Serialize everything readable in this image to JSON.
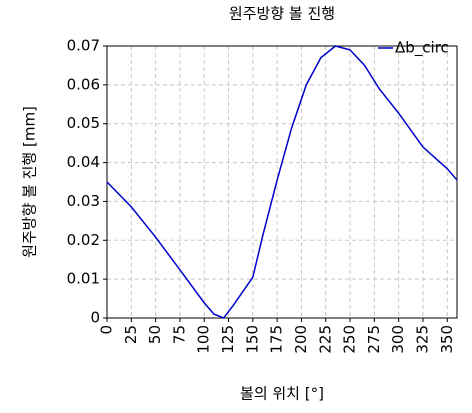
{
  "chart_data": {
    "type": "line",
    "title": "원주방향 볼 진행",
    "x_label": "볼의 위치 [°]",
    "y_label": "원주방향 볼 진행 [mm]",
    "x": [
      0,
      25,
      50,
      75,
      100,
      110,
      120,
      130,
      150,
      160,
      175,
      190,
      205,
      220,
      235,
      250,
      265,
      280,
      300,
      325,
      350,
      360
    ],
    "series": [
      {
        "name": "Δb_circ",
        "color": "#0000cc",
        "values": [
          0.035,
          0.0286,
          0.0208,
          0.0124,
          0.0039,
          0.001,
          0,
          0.0033,
          0.0105,
          0.021,
          0.0355,
          0.049,
          0.06,
          0.067,
          0.07,
          0.069,
          0.065,
          0.059,
          0.0527,
          0.044,
          0.0384,
          0.0355
        ]
      }
    ],
    "xlim": [
      0,
      360
    ],
    "xticks": [
      0,
      25,
      50,
      75,
      100,
      125,
      150,
      175,
      200,
      225,
      250,
      275,
      300,
      325,
      350
    ],
    "ylim": [
      0,
      0.07
    ],
    "yticks": [
      0,
      0.01,
      0.02,
      0.03,
      0.04,
      0.05,
      0.06,
      0.07
    ],
    "grid": true,
    "legend": "top-right"
  }
}
